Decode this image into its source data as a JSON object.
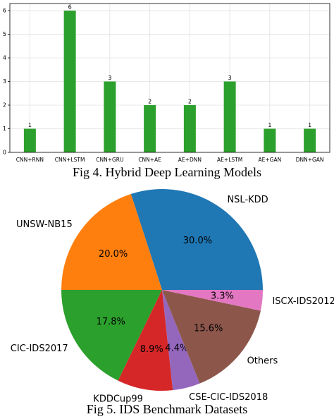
{
  "chart_data": [
    {
      "type": "bar",
      "caption": "Fig 4. Hybrid Deep Learning Models",
      "categories": [
        "CNN+RNN",
        "CNN+LSTM",
        "CNN+GRU",
        "CNN+AE",
        "AE+DNN",
        "AE+LSTM",
        "AE+GAN",
        "DNN+GAN"
      ],
      "values": [
        1,
        6,
        3,
        2,
        2,
        3,
        1,
        1
      ],
      "color": "#2ca02c",
      "ylim": [
        0,
        6.3
      ],
      "yticks": [
        0,
        1,
        2,
        3,
        4,
        5,
        6
      ],
      "grid": true
    },
    {
      "type": "pie",
      "caption": "Fig 5. IDS Benchmark Datasets",
      "categories": [
        "NSL-KDD",
        "UNSW-NB15",
        "CIC-IDS2017",
        "KDDCup99",
        "CSE-CIC-IDS2018",
        "Others",
        "ISCX-IDS2012"
      ],
      "values": [
        30.0,
        20.0,
        17.8,
        8.9,
        4.4,
        15.6,
        3.3
      ],
      "value_labels": [
        "30.0%",
        "20.0%",
        "17.8%",
        "8.9%",
        "4.4%",
        "15.6%",
        "3.3%"
      ],
      "colors": [
        "#1f77b4",
        "#ff7f0e",
        "#2ca02c",
        "#d62728",
        "#9467bd",
        "#8c564b",
        "#e377c2"
      ]
    }
  ]
}
